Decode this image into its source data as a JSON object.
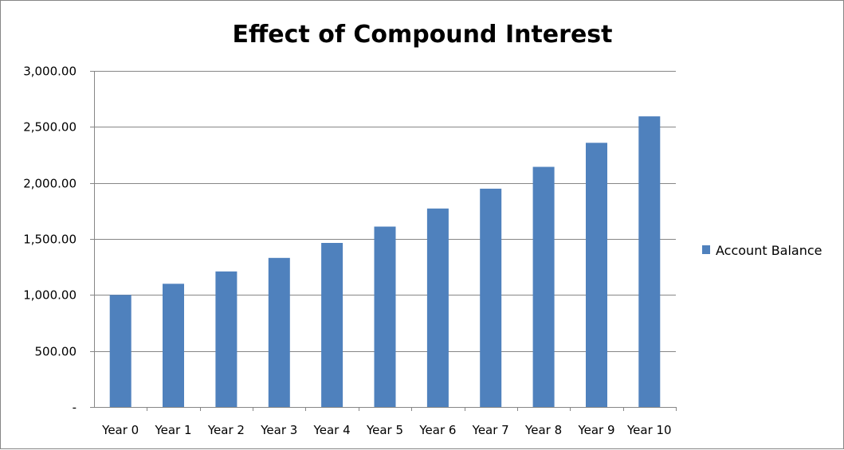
{
  "chart_data": {
    "type": "bar",
    "title": "Effect of Compound Interest",
    "xlabel": "",
    "ylabel": "",
    "categories": [
      "Year 0",
      "Year 1",
      "Year 2",
      "Year 3",
      "Year 4",
      "Year 5",
      "Year 6",
      "Year 7",
      "Year 8",
      "Year 9",
      "Year 10"
    ],
    "series": [
      {
        "name": "Account Balance",
        "color": "#4f81bd",
        "values": [
          1000.0,
          1100.0,
          1210.0,
          1331.0,
          1464.1,
          1610.51,
          1771.56,
          1948.72,
          2143.59,
          2357.95,
          2593.74
        ]
      }
    ],
    "ylim": [
      0,
      3000
    ],
    "y_ticks": [
      0,
      500,
      1000,
      1500,
      2000,
      2500,
      3000
    ],
    "y_tick_labels": [
      "-",
      "500.00",
      "1,000.00",
      "1,500.00",
      "2,000.00",
      "2,500.00",
      "3,000.00"
    ],
    "grid": true,
    "legend_position": "right",
    "gridline_color": "#868686"
  }
}
